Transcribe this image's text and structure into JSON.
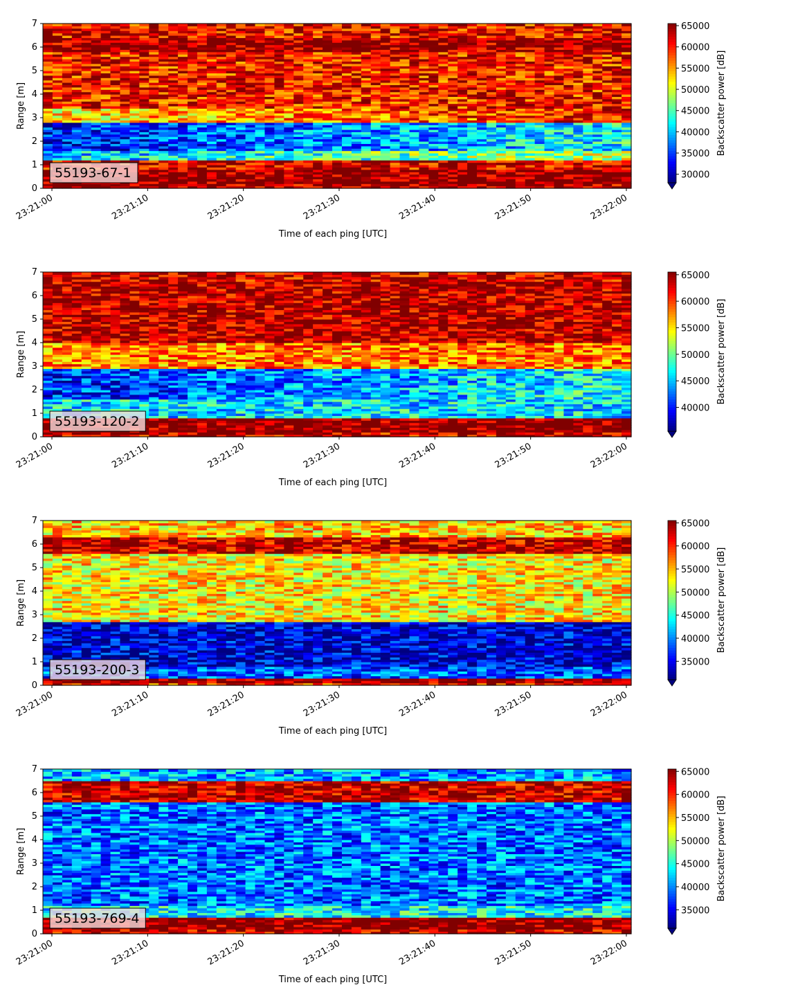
{
  "chart_data": [
    {
      "type": "heatmap",
      "label": "55193-67-1",
      "xlabel": "Time of each ping [UTC]",
      "ylabel": "Range [m]",
      "xticks": [
        "23:21:00",
        "23:21:10",
        "23:21:20",
        "23:21:30",
        "23:21:40",
        "23:21:50",
        "23:22:00"
      ],
      "ylim": [
        0,
        7
      ],
      "yticks": [
        0,
        1,
        2,
        3,
        4,
        5,
        6,
        7
      ],
      "colorbar": {
        "label": "Backscatter power [dB]",
        "min": 28000,
        "max": 65500,
        "ticks": [
          30000,
          35000,
          40000,
          45000,
          50000,
          55000,
          60000,
          65000
        ]
      },
      "bands": [
        {
          "from": 0.0,
          "to": 0.2,
          "value": 64000
        },
        {
          "from": 0.2,
          "to": 0.8,
          "value": 65500
        },
        {
          "from": 0.8,
          "to": 1.2,
          "value": 62000
        },
        {
          "from": 1.2,
          "to": 1.6,
          "value": 40000
        },
        {
          "from": 1.6,
          "to": 2.8,
          "value": 33000
        },
        {
          "from": 2.8,
          "to": 3.4,
          "value": 52000
        },
        {
          "from": 3.4,
          "to": 5.8,
          "value": 60000
        },
        {
          "from": 5.8,
          "to": 6.4,
          "value": 64500
        },
        {
          "from": 6.4,
          "to": 7.0,
          "value": 61000
        }
      ]
    },
    {
      "type": "heatmap",
      "label": "55193-120-2",
      "xlabel": "Time of each ping [UTC]",
      "ylabel": "Range [m]",
      "xticks": [
        "23:21:00",
        "23:21:10",
        "23:21:20",
        "23:21:30",
        "23:21:40",
        "23:21:50",
        "23:22:00"
      ],
      "ylim": [
        0,
        7
      ],
      "yticks": [
        0,
        1,
        2,
        3,
        4,
        5,
        6,
        7
      ],
      "colorbar": {
        "label": "Backscatter power [dB]",
        "min": 35500,
        "max": 65500,
        "ticks": [
          40000,
          45000,
          50000,
          55000,
          60000,
          65000
        ]
      },
      "bands": [
        {
          "from": 0.0,
          "to": 0.2,
          "value": 63000
        },
        {
          "from": 0.2,
          "to": 0.8,
          "value": 65500
        },
        {
          "from": 0.8,
          "to": 1.6,
          "value": 46000
        },
        {
          "from": 1.6,
          "to": 2.9,
          "value": 40000
        },
        {
          "from": 2.9,
          "to": 4.0,
          "value": 58000
        },
        {
          "from": 4.0,
          "to": 6.6,
          "value": 64000
        },
        {
          "from": 6.6,
          "to": 7.0,
          "value": 63000
        }
      ]
    },
    {
      "type": "heatmap",
      "label": "55193-200-3",
      "xlabel": "Time of each ping [UTC]",
      "ylabel": "Range [m]",
      "xticks": [
        "23:21:00",
        "23:21:10",
        "23:21:20",
        "23:21:30",
        "23:21:40",
        "23:21:50",
        "23:22:00"
      ],
      "ylim": [
        0,
        7
      ],
      "yticks": [
        0,
        1,
        2,
        3,
        4,
        5,
        6,
        7
      ],
      "colorbar": {
        "label": "Backscatter power [dB]",
        "min": 31000,
        "max": 65500,
        "ticks": [
          35000,
          40000,
          45000,
          50000,
          55000,
          60000,
          65000
        ]
      },
      "bands": [
        {
          "from": 0.0,
          "to": 0.15,
          "value": 60000
        },
        {
          "from": 0.15,
          "to": 0.35,
          "value": 65000
        },
        {
          "from": 0.35,
          "to": 0.8,
          "value": 38000
        },
        {
          "from": 0.8,
          "to": 2.7,
          "value": 34000
        },
        {
          "from": 2.7,
          "to": 5.6,
          "value": 53000
        },
        {
          "from": 5.6,
          "to": 6.3,
          "value": 63000
        },
        {
          "from": 6.3,
          "to": 7.0,
          "value": 54000
        }
      ]
    },
    {
      "type": "heatmap",
      "label": "55193-769-4",
      "xlabel": "Time of each ping [UTC]",
      "ylabel": "Range [m]",
      "xticks": [
        "23:21:00",
        "23:21:10",
        "23:21:20",
        "23:21:30",
        "23:21:40",
        "23:21:50",
        "23:22:00"
      ],
      "ylim": [
        0,
        7
      ],
      "yticks": [
        0,
        1,
        2,
        3,
        4,
        5,
        6,
        7
      ],
      "colorbar": {
        "label": "Backscatter power [dB]",
        "min": 31000,
        "max": 65500,
        "ticks": [
          35000,
          40000,
          45000,
          50000,
          55000,
          60000,
          65000
        ]
      },
      "bands": [
        {
          "from": 0.0,
          "to": 0.2,
          "value": 63000
        },
        {
          "from": 0.2,
          "to": 0.7,
          "value": 65500
        },
        {
          "from": 0.7,
          "to": 1.2,
          "value": 44000
        },
        {
          "from": 1.2,
          "to": 5.6,
          "value": 39000
        },
        {
          "from": 5.6,
          "to": 6.5,
          "value": 63000
        },
        {
          "from": 6.5,
          "to": 7.0,
          "value": 41000
        }
      ]
    }
  ]
}
